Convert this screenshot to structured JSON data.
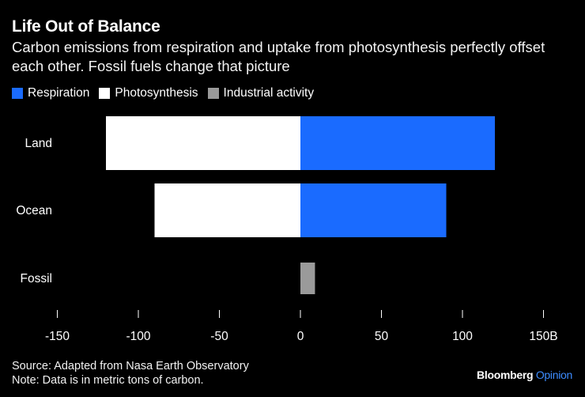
{
  "header": {
    "title": "Life Out of Balance",
    "subtitle": "Carbon emissions from respiration and uptake from photosynthesis perfectly offset each other. Fossil fuels change that picture"
  },
  "footer": {
    "source": "Source: Adapted from Nasa Earth Observatory",
    "note": "Note: Data is in metric tons of carbon."
  },
  "brand": {
    "name": "Bloomberg",
    "section": "Opinion"
  },
  "colors": {
    "background": "#000000",
    "respiration": "#1a6bff",
    "photosynthesis": "#ffffff",
    "industrial": "#9a9a9a",
    "tick": "#ffffff"
  },
  "chart_data": {
    "type": "bar",
    "orientation": "horizontal",
    "stacked": true,
    "title": "Life Out of Balance",
    "categories": [
      "Land",
      "Ocean",
      "Fossil"
    ],
    "series": [
      {
        "name": "Respiration",
        "color": "#1a6bff",
        "values": [
          120,
          90,
          0
        ]
      },
      {
        "name": "Photosynthesis",
        "color": "#ffffff",
        "values": [
          -120,
          -90,
          0
        ]
      },
      {
        "name": "Industrial activity",
        "color": "#9a9a9a",
        "values": [
          0,
          0,
          9
        ]
      }
    ],
    "xlim": [
      -150,
      150
    ],
    "xticks": [
      -150,
      -100,
      -50,
      0,
      50,
      100,
      150
    ],
    "xtick_labels": [
      "-150",
      "-100",
      "-50",
      "0",
      "50",
      "100",
      "150B"
    ],
    "grid": false,
    "legend": "top-left"
  }
}
